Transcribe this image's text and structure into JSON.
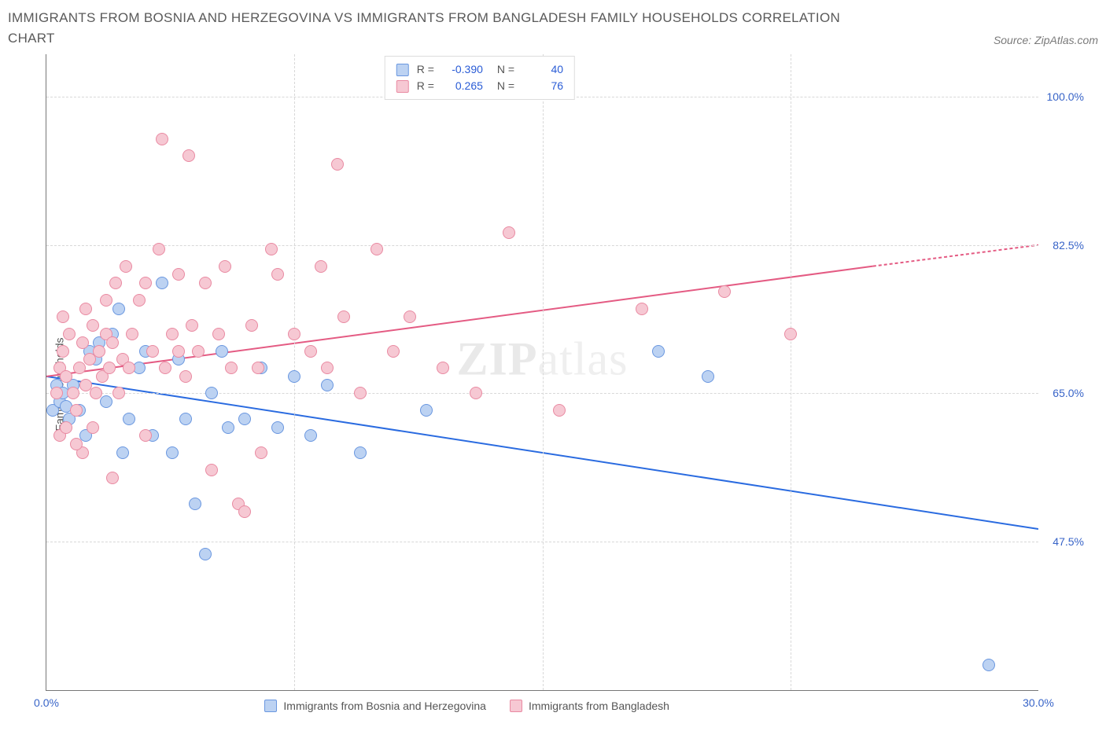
{
  "title": "IMMIGRANTS FROM BOSNIA AND HERZEGOVINA VS IMMIGRANTS FROM BANGLADESH FAMILY HOUSEHOLDS CORRELATION CHART",
  "source": "Source: ZipAtlas.com",
  "ylabel": "Family Households",
  "watermark_a": "ZIP",
  "watermark_b": "atlas",
  "chart": {
    "type": "scatter",
    "background_color": "#ffffff",
    "grid_color": "#d8d8d8",
    "axis_color": "#777777",
    "tick_color": "#3864c8",
    "xlim": [
      0,
      30
    ],
    "ylim": [
      30,
      105
    ],
    "yticks": [
      47.5,
      65.0,
      82.5,
      100.0
    ],
    "ytick_labels": [
      "47.5%",
      "65.0%",
      "82.5%",
      "100.0%"
    ],
    "xticks": [
      0,
      7.5,
      15,
      22.5,
      30
    ],
    "xtick_labels": [
      "0.0%",
      "",
      "",
      "",
      "30.0%"
    ],
    "marker_radius": 8,
    "series": [
      {
        "key": "bosnia",
        "label": "Immigrants from Bosnia and Herzegovina",
        "fill": "#bcd2f2",
        "stroke": "#6a97e0",
        "trend_color": "#2a6be0",
        "trend_width": 2,
        "R": "-0.390",
        "N": "40",
        "trend": {
          "x1": 0,
          "y1": 67,
          "x2": 30,
          "y2": 49
        },
        "points": [
          [
            0.2,
            63
          ],
          [
            0.3,
            66
          ],
          [
            0.4,
            64
          ],
          [
            0.5,
            65
          ],
          [
            0.6,
            63.5
          ],
          [
            0.7,
            62
          ],
          [
            0.8,
            66
          ],
          [
            1.0,
            63
          ],
          [
            1.2,
            60
          ],
          [
            1.3,
            70
          ],
          [
            1.5,
            69
          ],
          [
            1.6,
            71
          ],
          [
            1.8,
            64
          ],
          [
            2.0,
            72
          ],
          [
            2.2,
            75
          ],
          [
            2.3,
            58
          ],
          [
            2.5,
            62
          ],
          [
            2.8,
            68
          ],
          [
            3.0,
            70
          ],
          [
            3.2,
            60
          ],
          [
            3.5,
            78
          ],
          [
            3.8,
            58
          ],
          [
            4.0,
            69
          ],
          [
            4.2,
            62
          ],
          [
            4.5,
            52
          ],
          [
            4.8,
            46
          ],
          [
            5.0,
            65
          ],
          [
            5.3,
            70
          ],
          [
            5.5,
            61
          ],
          [
            6.0,
            62
          ],
          [
            6.5,
            68
          ],
          [
            7.0,
            61
          ],
          [
            7.5,
            67
          ],
          [
            8.0,
            60
          ],
          [
            8.5,
            66
          ],
          [
            9.5,
            58
          ],
          [
            11.5,
            63
          ],
          [
            18.5,
            70
          ],
          [
            20.0,
            67
          ],
          [
            28.5,
            33
          ]
        ]
      },
      {
        "key": "bangladesh",
        "label": "Immigrants from Bangladesh",
        "fill": "#f6c8d3",
        "stroke": "#e98aa2",
        "trend_color": "#e45b83",
        "trend_width": 2,
        "R": "0.265",
        "N": "76",
        "trend": {
          "x1": 0,
          "y1": 67,
          "x2": 25,
          "y2": 80,
          "x3": 30,
          "y3": 82.5,
          "dashed_after": 25
        },
        "points": [
          [
            0.3,
            65
          ],
          [
            0.4,
            68
          ],
          [
            0.5,
            70
          ],
          [
            0.6,
            67
          ],
          [
            0.7,
            72
          ],
          [
            0.8,
            65
          ],
          [
            0.9,
            63
          ],
          [
            1.0,
            68
          ],
          [
            1.1,
            71
          ],
          [
            1.2,
            66
          ],
          [
            1.3,
            69
          ],
          [
            1.4,
            73
          ],
          [
            1.5,
            65
          ],
          [
            1.6,
            70
          ],
          [
            1.7,
            67
          ],
          [
            1.8,
            72
          ],
          [
            1.9,
            68
          ],
          [
            2.0,
            71
          ],
          [
            2.1,
            78
          ],
          [
            2.2,
            65
          ],
          [
            2.3,
            69
          ],
          [
            2.4,
            80
          ],
          [
            2.5,
            68
          ],
          [
            2.6,
            72
          ],
          [
            2.8,
            76
          ],
          [
            3.0,
            78
          ],
          [
            3.2,
            70
          ],
          [
            3.4,
            82
          ],
          [
            3.6,
            68
          ],
          [
            3.8,
            72
          ],
          [
            4.0,
            79
          ],
          [
            4.2,
            67
          ],
          [
            4.4,
            73
          ],
          [
            4.6,
            70
          ],
          [
            4.8,
            78
          ],
          [
            5.0,
            56
          ],
          [
            5.2,
            72
          ],
          [
            5.4,
            80
          ],
          [
            5.6,
            68
          ],
          [
            5.8,
            52
          ],
          [
            6.0,
            51
          ],
          [
            6.2,
            73
          ],
          [
            6.4,
            68
          ],
          [
            6.8,
            82
          ],
          [
            7.0,
            79
          ],
          [
            7.5,
            72
          ],
          [
            8.0,
            70
          ],
          [
            8.3,
            80
          ],
          [
            8.5,
            68
          ],
          [
            8.8,
            92
          ],
          [
            9.0,
            74
          ],
          [
            9.5,
            65
          ],
          [
            10.0,
            82
          ],
          [
            10.5,
            70
          ],
          [
            11.0,
            74
          ],
          [
            12.0,
            68
          ],
          [
            13.0,
            65
          ],
          [
            14.0,
            84
          ],
          [
            15.5,
            63
          ],
          [
            18.0,
            75
          ],
          [
            20.5,
            77
          ],
          [
            22.5,
            72
          ],
          [
            3.5,
            95
          ],
          [
            0.5,
            74
          ],
          [
            1.2,
            75
          ],
          [
            1.8,
            76
          ],
          [
            0.4,
            60
          ],
          [
            2.0,
            55
          ],
          [
            3.0,
            60
          ],
          [
            6.5,
            58
          ],
          [
            4.3,
            93
          ],
          [
            1.1,
            58
          ],
          [
            0.9,
            59
          ],
          [
            1.4,
            61
          ],
          [
            0.6,
            61
          ],
          [
            4.0,
            70
          ]
        ]
      }
    ]
  },
  "corr_legend": {
    "rows": [
      {
        "swatch_fill": "#bcd2f2",
        "swatch_stroke": "#6a97e0",
        "r_label": "R =",
        "r_val": "-0.390",
        "n_label": "N =",
        "n_val": "40"
      },
      {
        "swatch_fill": "#f6c8d3",
        "swatch_stroke": "#e98aa2",
        "r_label": "R =",
        "r_val": "0.265",
        "n_label": "N =",
        "n_val": "76"
      }
    ]
  }
}
